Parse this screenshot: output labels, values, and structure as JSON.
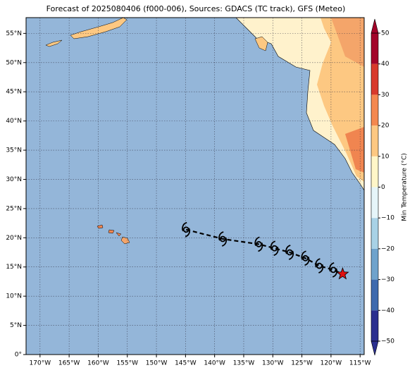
{
  "map": {
    "title": "Forecast of 2025080406 (f000-006), Sources: GDACS (TC track), GFS (Meteo)",
    "xlim": [
      -172.4,
      -114.3
    ],
    "ylim": [
      0,
      57.7
    ],
    "xticks": [
      {
        "value": -170,
        "label": "170°W"
      },
      {
        "value": -165,
        "label": "165°W"
      },
      {
        "value": -160,
        "label": "160°W"
      },
      {
        "value": -155,
        "label": "155°W"
      },
      {
        "value": -150,
        "label": "150°W"
      },
      {
        "value": -145,
        "label": "145°W"
      },
      {
        "value": -140,
        "label": "140°W"
      },
      {
        "value": -135,
        "label": "135°W"
      },
      {
        "value": -130,
        "label": "130°W"
      },
      {
        "value": -125,
        "label": "125°W"
      },
      {
        "value": -120,
        "label": "120°W"
      },
      {
        "value": -115,
        "label": "115°W"
      }
    ],
    "yticks": [
      {
        "value": 0,
        "label": "0°"
      },
      {
        "value": 5,
        "label": "5°N"
      },
      {
        "value": 10,
        "label": "10°N"
      },
      {
        "value": 15,
        "label": "15°N"
      },
      {
        "value": 20,
        "label": "20°N"
      },
      {
        "value": 25,
        "label": "25°N"
      },
      {
        "value": 30,
        "label": "30°N"
      },
      {
        "value": 35,
        "label": "35°N"
      },
      {
        "value": 40,
        "label": "40°N"
      },
      {
        "value": 45,
        "label": "45°N"
      },
      {
        "value": 50,
        "label": "50°N"
      },
      {
        "value": 55,
        "label": "55°N"
      }
    ],
    "grid": true,
    "ocean_color": "#94b6d9",
    "track": {
      "lon": [
        -144.9,
        -138.6,
        -132.4,
        -129.7,
        -127.1,
        -124.4,
        -122.0,
        -119.6
      ],
      "lat": [
        21.4,
        19.8,
        18.9,
        18.2,
        17.5,
        16.5,
        15.2,
        14.5
      ]
    },
    "current": {
      "lon": -118.0,
      "lat": 13.8,
      "color": "#e01010"
    },
    "colorbar": {
      "label": "Min Temperature (°C)",
      "lim": [
        -50,
        50
      ],
      "ticks": [
        {
          "value": -50,
          "label": "−50"
        },
        {
          "value": -40,
          "label": "−40"
        },
        {
          "value": -30,
          "label": "−30"
        },
        {
          "value": -20,
          "label": "−20"
        },
        {
          "value": -10,
          "label": "−10"
        },
        0,
        10,
        20,
        30,
        40,
        50
      ],
      "colors": [
        "#2b2f8f",
        "#3e6aae",
        "#6fa3cc",
        "#a8d2e6",
        "#e6f5f9",
        "#fff6c8",
        "#fdc882",
        "#f4884f",
        "#d83a2c",
        "#a3052a"
      ]
    }
  }
}
